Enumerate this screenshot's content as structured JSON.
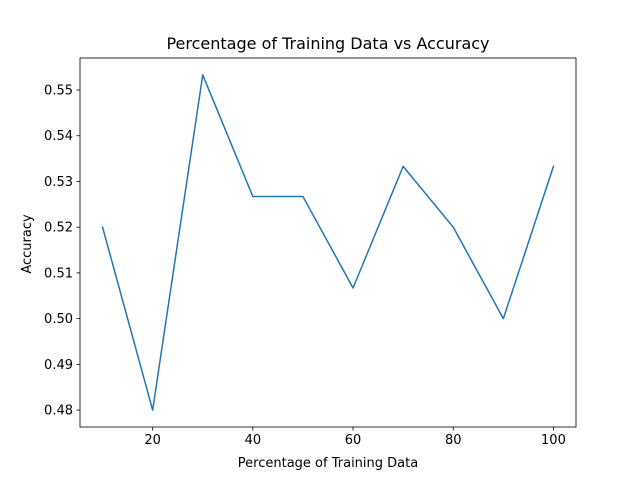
{
  "chart_data": {
    "type": "line",
    "title": "Percentage of Training Data vs Accuracy",
    "xlabel": "Percentage of Training Data",
    "ylabel": "Accuracy",
    "x": [
      10,
      20,
      30,
      40,
      50,
      60,
      70,
      80,
      90,
      100
    ],
    "series": [
      {
        "values": [
          0.52,
          0.48,
          0.5533,
          0.5267,
          0.5267,
          0.5067,
          0.5333,
          0.52,
          0.5,
          0.5333
        ],
        "color": "#1f77b4"
      }
    ],
    "xlim": [
      5.5,
      104.5
    ],
    "ylim": [
      0.4763,
      0.557
    ],
    "xticks": [
      20,
      40,
      60,
      80,
      100
    ],
    "yticks": [
      0.48,
      0.49,
      0.5,
      0.51,
      0.52,
      0.53,
      0.54,
      0.55
    ],
    "ytick_labels": [
      "0.48",
      "0.49",
      "0.50",
      "0.51",
      "0.52",
      "0.53",
      "0.54",
      "0.55"
    ],
    "grid": false,
    "legend": "none"
  }
}
